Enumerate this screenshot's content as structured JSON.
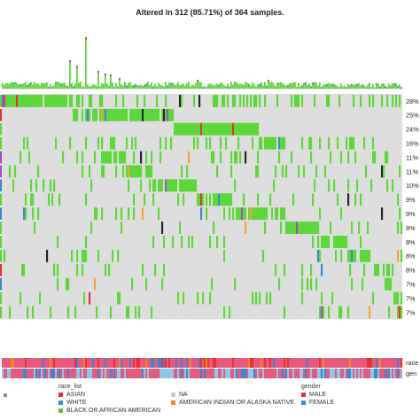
{
  "chart_data": {
    "type": "heatmap",
    "title": "Altered in 312 (85.71%) of 364 samples.",
    "genes": [
      "",
      "",
      "",
      "",
      "",
      "",
      "",
      "",
      "",
      "",
      "",
      "",
      "",
      "",
      "",
      ""
    ],
    "frequencies": [
      "28%",
      "25%",
      "24%",
      "16%",
      "11%",
      "11%",
      "10%",
      "9%",
      "9%",
      "8%",
      "8%",
      "8%",
      "8%",
      "7%",
      "7%",
      "7%"
    ],
    "clinical_tracks": [
      {
        "label": "race"
      },
      {
        "label": "gen"
      }
    ],
    "legend": {
      "race_list": {
        "title": "race_list",
        "items": [
          {
            "label": "ASIAN",
            "color": "#e8312b"
          },
          {
            "label": "WHITE",
            "color": "#3c8fd6"
          },
          {
            "label": "BLACK OR AFRICAN AMERICAN",
            "color": "#63c23d"
          },
          {
            "label": "NA",
            "color": "#c8c8c8"
          },
          {
            "label": "AMERICAN INDIAN OR ALASKA NATIVE",
            "color": "#f28a1f"
          }
        ]
      },
      "gender": {
        "title": "gender",
        "items": [
          {
            "label": "MALE",
            "color": "#e8312b"
          },
          {
            "label": "FEMALE",
            "color": "#3c8fd6"
          }
        ]
      }
    },
    "colors": {
      "background_cell": "#d6d6d6",
      "missense": "#5ed73a",
      "truncating": "#222222",
      "frameshift_del": "#3a86d0",
      "frameshift_ins": "#a04fc0",
      "nonsense": "#e3323a",
      "splice": "#f2a43a",
      "race_pink": "#e65a7f",
      "gender_light_blue": "#8ec7e8"
    }
  }
}
